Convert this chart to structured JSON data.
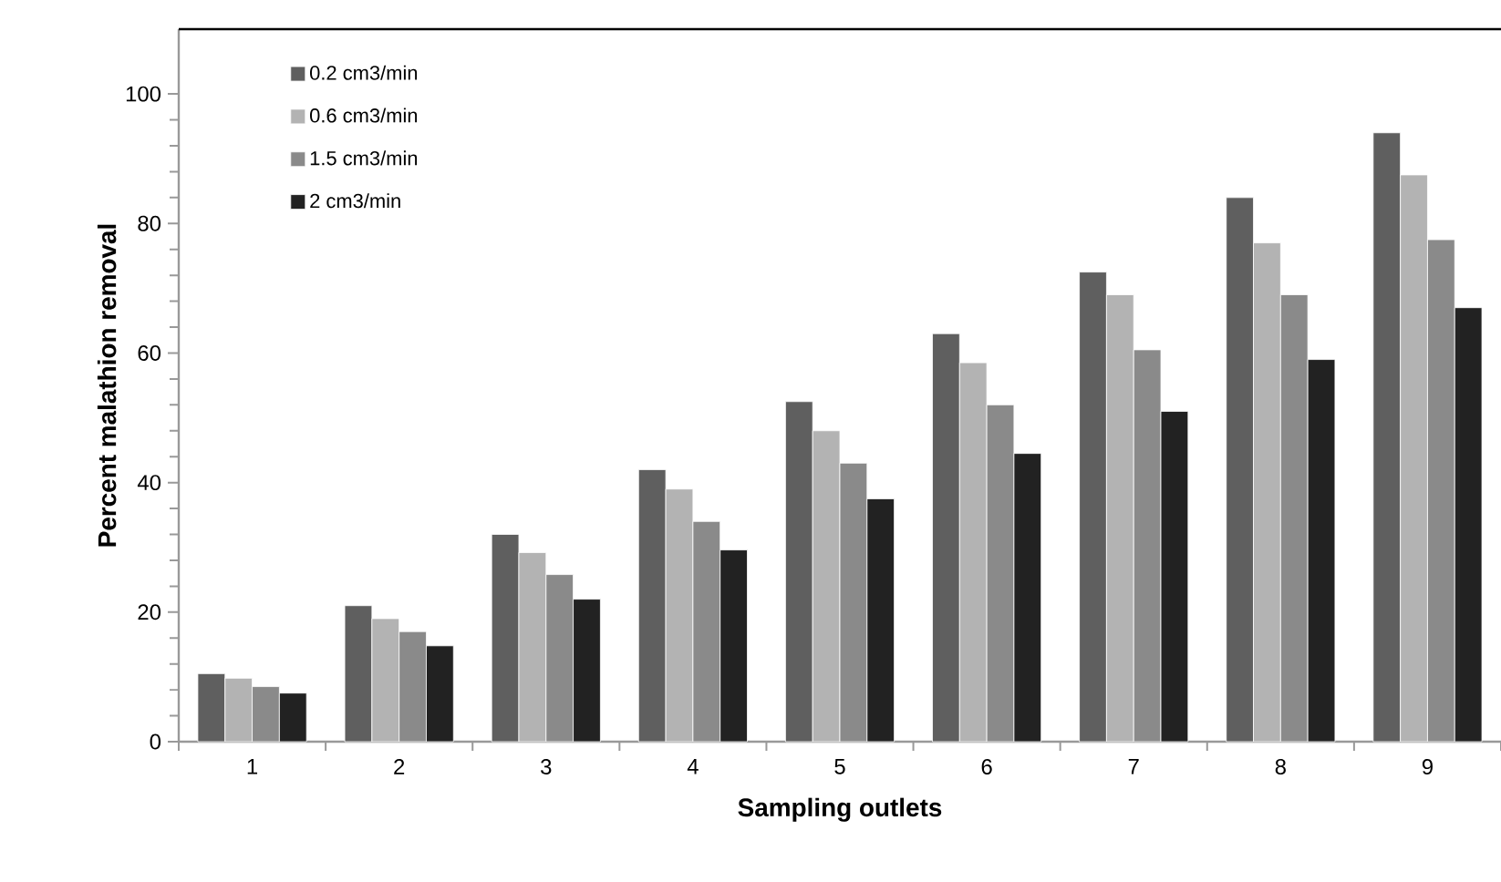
{
  "chart_data": {
    "type": "bar",
    "xlabel": "Sampling outlets",
    "ylabel": "Percent malathion removal",
    "categories": [
      "1",
      "2",
      "3",
      "4",
      "5",
      "6",
      "7",
      "8",
      "9"
    ],
    "series": [
      {
        "name": "0.2 cm3/min",
        "color": "#5f5f5f",
        "values": [
          10.5,
          21,
          32,
          42,
          52.5,
          63,
          72.5,
          84,
          94
        ]
      },
      {
        "name": "0.6 cm3/min",
        "color": "#b3b3b3",
        "values": [
          9.8,
          19,
          29.2,
          39,
          48,
          58.5,
          69,
          77,
          87.5
        ]
      },
      {
        "name": "1.5 cm3/min",
        "color": "#8a8a8a",
        "values": [
          8.5,
          17,
          25.8,
          34,
          43,
          52,
          60.5,
          69,
          77.5
        ]
      },
      {
        "name": "2 cm3/min",
        "color": "#222222",
        "values": [
          7.5,
          14.8,
          22,
          29.6,
          37.5,
          44.5,
          51,
          59,
          67
        ]
      }
    ],
    "ylim": [
      0,
      110
    ],
    "yticks": [
      0,
      20,
      40,
      60,
      80,
      100
    ],
    "legend": "top left"
  }
}
